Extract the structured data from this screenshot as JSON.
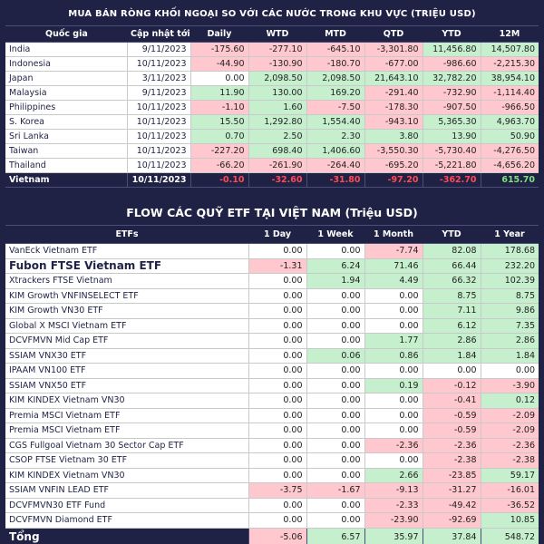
{
  "top": {
    "title": "MUA BÁN RÒNG KHỐI NGOẠI SO VỚI CÁC NƯỚC TRONG KHU VỰC (TRIỆU USD)",
    "headers": [
      "Quốc gia",
      "Cập nhật tới",
      "Daily",
      "WTD",
      "MTD",
      "QTD",
      "YTD",
      "12M"
    ],
    "rows": [
      {
        "country": "India",
        "date": "9/11/2023",
        "values": [
          "-175.60",
          "-277.10",
          "-645.10",
          "-3,301.80",
          "11,456.80",
          "14,507.80"
        ]
      },
      {
        "country": "Indonesia",
        "date": "10/11/2023",
        "values": [
          "-44.90",
          "-130.90",
          "-180.70",
          "-677.00",
          "-986.60",
          "-2,215.30"
        ]
      },
      {
        "country": "Japan",
        "date": "3/11/2023",
        "values": [
          "0.00",
          "2,098.50",
          "2,098.50",
          "21,643.10",
          "32,782.20",
          "38,954.10"
        ]
      },
      {
        "country": "Malaysia",
        "date": "9/11/2023",
        "values": [
          "11.90",
          "130.00",
          "169.20",
          "-291.40",
          "-732.90",
          "-1,114.40"
        ]
      },
      {
        "country": "Philippines",
        "date": "10/11/2023",
        "values": [
          "-1.10",
          "1.60",
          "-7.50",
          "-178.30",
          "-907.50",
          "-966.50"
        ]
      },
      {
        "country": "S. Korea",
        "date": "10/11/2023",
        "values": [
          "15.50",
          "1,292.80",
          "1,554.40",
          "-943.10",
          "5,365.30",
          "4,963.70"
        ]
      },
      {
        "country": "Sri Lanka",
        "date": "10/11/2023",
        "values": [
          "0.70",
          "2.50",
          "2.30",
          "3.80",
          "13.90",
          "50.90"
        ]
      },
      {
        "country": "Taiwan",
        "date": "10/11/2023",
        "values": [
          "-227.20",
          "698.40",
          "1,406.60",
          "-3,550.30",
          "-5,730.40",
          "-4,276.50"
        ]
      },
      {
        "country": "Thailand",
        "date": "10/11/2023",
        "values": [
          "-66.20",
          "-261.90",
          "-264.40",
          "-695.20",
          "-5,221.80",
          "-4,656.20"
        ]
      }
    ],
    "total": {
      "country": "Vietnam",
      "date": "10/11/2023",
      "values": [
        "-0.10",
        "-32.60",
        "-31.80",
        "-97.20",
        "-362.70",
        "615.70"
      ]
    }
  },
  "etf": {
    "title": "FLOW CÁC QUỸ ETF TẠI VIỆT NAM (Triệu USD)",
    "headers": [
      "ETFs",
      "1 Day",
      "1 Week",
      "1 Month",
      "YTD",
      "1 Year"
    ],
    "rows": [
      {
        "name": "VanEck Vietnam ETF",
        "values": [
          "0.00",
          "0.00",
          "-7.74",
          "82.08",
          "178.68"
        ]
      },
      {
        "name": "Fubon FTSE Vietnam ETF",
        "values": [
          "-1.31",
          "6.24",
          "71.46",
          "66.44",
          "232.20"
        ],
        "big": true
      },
      {
        "name": "Xtrackers FTSE Vietnam",
        "values": [
          "0.00",
          "1.94",
          "4.49",
          "66.32",
          "102.39"
        ]
      },
      {
        "name": "KIM Growth VNFINSELECT ETF",
        "values": [
          "0.00",
          "0.00",
          "0.00",
          "8.75",
          "8.75"
        ]
      },
      {
        "name": "KIM Growth VN30 ETF",
        "values": [
          "0.00",
          "0.00",
          "0.00",
          "7.11",
          "9.86"
        ]
      },
      {
        "name": "Global X MSCI Vietnam ETF",
        "values": [
          "0.00",
          "0.00",
          "0.00",
          "6.12",
          "7.35"
        ]
      },
      {
        "name": "DCVFMVN Mid Cap ETF",
        "values": [
          "0.00",
          "0.00",
          "1.77",
          "2.86",
          "2.86"
        ]
      },
      {
        "name": "SSIAM VNX30 ETF",
        "values": [
          "0.00",
          "0.06",
          "0.86",
          "1.84",
          "1.84"
        ]
      },
      {
        "name": "IPAAM VN100 ETF",
        "values": [
          "0.00",
          "0.00",
          "0.00",
          "0.00",
          "0.00"
        ]
      },
      {
        "name": "SSIAM VNX50 ETF",
        "values": [
          "0.00",
          "0.00",
          "0.19",
          "-0.12",
          "-3.90"
        ]
      },
      {
        "name": "KIM KINDEX Vietnam VN30",
        "values": [
          "0.00",
          "0.00",
          "0.00",
          "-0.41",
          "0.12"
        ]
      },
      {
        "name": "Premia MSCI Vietnam ETF",
        "values": [
          "0.00",
          "0.00",
          "0.00",
          "-0.59",
          "-2.09"
        ]
      },
      {
        "name": "Premia MSCI Vietnam ETF",
        "values": [
          "0.00",
          "0.00",
          "0.00",
          "-0.59",
          "-2.09"
        ]
      },
      {
        "name": "CGS Fullgoal Vietnam 30 Sector Cap ETF",
        "values": [
          "0.00",
          "0.00",
          "-2.36",
          "-2.36",
          "-2.36"
        ]
      },
      {
        "name": "CSOP FTSE Vietnam 30 ETF",
        "values": [
          "0.00",
          "0.00",
          "0.00",
          "-2.38",
          "-2.38"
        ]
      },
      {
        "name": "KIM KINDEX Vietnam VN30",
        "values": [
          "0.00",
          "0.00",
          "2.66",
          "-23.85",
          "59.17"
        ]
      },
      {
        "name": "SSIAM VNFIN LEAD ETF",
        "values": [
          "-3.75",
          "-1.67",
          "-9.13",
          "-31.27",
          "-16.01"
        ]
      },
      {
        "name": "DCVFMVN30 ETF Fund",
        "values": [
          "0.00",
          "0.00",
          "-2.33",
          "-49.42",
          "-36.52"
        ]
      },
      {
        "name": "DCVFMVN Diamond ETF",
        "values": [
          "0.00",
          "0.00",
          "-23.90",
          "-92.69",
          "10.85"
        ]
      }
    ],
    "total": {
      "name": "Tổng",
      "values": [
        "-5.06",
        "6.57",
        "35.97",
        "37.84",
        "548.72"
      ]
    }
  }
}
